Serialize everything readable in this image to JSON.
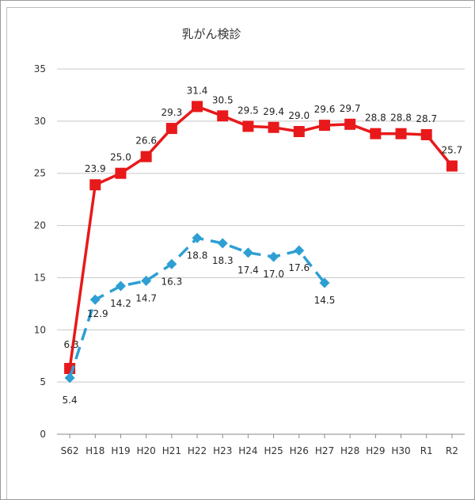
{
  "chart_data": {
    "type": "line",
    "title": "乳がん検診",
    "categories": [
      "S62",
      "H18",
      "H19",
      "H20",
      "H21",
      "H22",
      "H23",
      "H24",
      "H25",
      "H26",
      "H27",
      "H28",
      "H29",
      "H30",
      "R1",
      "R2"
    ],
    "ylim": [
      0,
      35
    ],
    "yticks": [
      "0",
      "5",
      "10",
      "15",
      "20",
      "25",
      "30",
      "35"
    ],
    "grid": true,
    "legend": "none",
    "series": [
      {
        "color": "#e8191b",
        "style": "solid",
        "marker": "square",
        "values": [
          6.3,
          23.9,
          25.0,
          26.6,
          29.3,
          31.4,
          30.5,
          29.5,
          29.4,
          29.0,
          29.6,
          29.7,
          28.8,
          28.8,
          28.7,
          25.7
        ],
        "labels": [
          "6.3",
          "23.9",
          "25.0",
          "26.6",
          "29.3",
          "31.4",
          "30.5",
          "29.5",
          "29.4",
          "29.0",
          "29.6",
          "29.7",
          "28.8",
          "28.8",
          "28.7",
          "25.7"
        ]
      },
      {
        "color": "#2e9fd3",
        "style": "dashed",
        "marker": "diamond",
        "values": [
          5.4,
          12.9,
          14.2,
          14.7,
          16.3,
          18.8,
          18.3,
          17.4,
          17.0,
          17.6,
          14.5,
          null,
          null,
          null,
          null,
          null
        ],
        "labels": [
          "5.4",
          "12.9",
          "14.2",
          "14.7",
          "16.3",
          "18.8",
          "18.3",
          "17.4",
          "17.0",
          "17.6",
          "14.5",
          "",
          "",
          "",
          "",
          ""
        ]
      }
    ]
  }
}
